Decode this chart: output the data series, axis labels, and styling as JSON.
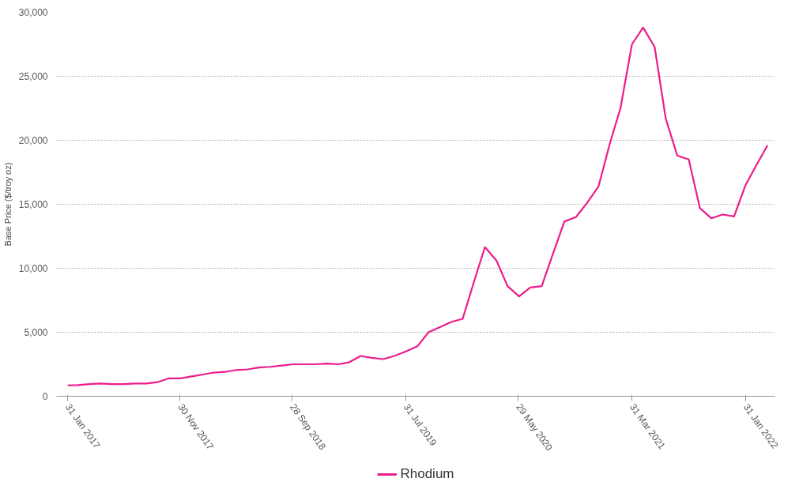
{
  "chart_data": {
    "type": "line",
    "ylabel": "Base Price ($/troy oz)",
    "x": [
      "2017-01-31",
      "2017-02-28",
      "2017-03-31",
      "2017-04-30",
      "2017-05-31",
      "2017-06-30",
      "2017-07-31",
      "2017-08-31",
      "2017-09-30",
      "2017-10-31",
      "2017-11-30",
      "2017-12-31",
      "2018-01-31",
      "2018-02-28",
      "2018-03-31",
      "2018-04-30",
      "2018-05-31",
      "2018-06-30",
      "2018-07-31",
      "2018-08-31",
      "2018-09-30",
      "2018-10-31",
      "2018-11-30",
      "2018-12-31",
      "2019-01-31",
      "2019-02-28",
      "2019-03-31",
      "2019-04-30",
      "2019-05-31",
      "2019-06-30",
      "2019-07-31",
      "2019-08-31",
      "2019-09-30",
      "2019-10-31",
      "2019-11-30",
      "2019-12-31",
      "2020-01-31",
      "2020-02-29",
      "2020-03-31",
      "2020-04-30",
      "2020-05-31",
      "2020-06-30",
      "2020-07-31",
      "2020-08-31",
      "2020-09-30",
      "2020-10-31",
      "2020-11-30",
      "2020-12-31",
      "2021-01-31",
      "2021-02-28",
      "2021-03-31",
      "2021-04-30",
      "2021-05-31",
      "2021-06-30",
      "2021-07-31",
      "2021-08-31",
      "2021-09-30",
      "2021-10-31",
      "2021-11-30",
      "2021-12-31",
      "2022-01-31",
      "2022-02-28",
      "2022-03-31"
    ],
    "series": [
      {
        "name": "Rhodium",
        "color": "#ec1c8c",
        "values": [
          850,
          870,
          950,
          1000,
          950,
          950,
          1000,
          1000,
          1100,
          1400,
          1400,
          1550,
          1700,
          1850,
          1900,
          2050,
          2100,
          2250,
          2300,
          2400,
          2500,
          2500,
          2500,
          2550,
          2500,
          2650,
          3150,
          3000,
          2900,
          3150,
          3500,
          3900,
          5000,
          5400,
          5800,
          6050,
          9000,
          11650,
          10600,
          8600,
          7800,
          8500,
          8600,
          11200,
          13650,
          14000,
          15100,
          16400,
          19800,
          22500,
          27500,
          28800,
          27300,
          21700,
          18800,
          18500,
          14700,
          13900,
          14200,
          14050,
          16500,
          18000,
          19600
        ]
      }
    ],
    "xlim": [
      "2017-01-01",
      "2022-04-20"
    ],
    "xticks": [
      {
        "value": "2017-01-31",
        "label": "31 Jan 2017"
      },
      {
        "value": "2017-11-30",
        "label": "30 Nov 2017"
      },
      {
        "value": "2018-09-28",
        "label": "28 Sep 2018"
      },
      {
        "value": "2019-07-31",
        "label": "31 Jul 2019"
      },
      {
        "value": "2020-05-29",
        "label": "29 May 2020"
      },
      {
        "value": "2021-03-31",
        "label": "31 Mar 2021"
      },
      {
        "value": "2022-01-31",
        "label": "31 Jan 2022"
      }
    ],
    "ylim": [
      0,
      30000
    ],
    "yticks": [
      {
        "value": 0,
        "label": "0"
      },
      {
        "value": 5000,
        "label": "5,000"
      },
      {
        "value": 10000,
        "label": "10,000"
      },
      {
        "value": 15000,
        "label": "15,000"
      },
      {
        "value": 20000,
        "label": "20,000"
      },
      {
        "value": 25000,
        "label": "25,000"
      },
      {
        "value": 30000,
        "label": "30,000"
      }
    ],
    "grid": "y",
    "legend": "bottom",
    "marker": "none",
    "line_style": "solid"
  }
}
